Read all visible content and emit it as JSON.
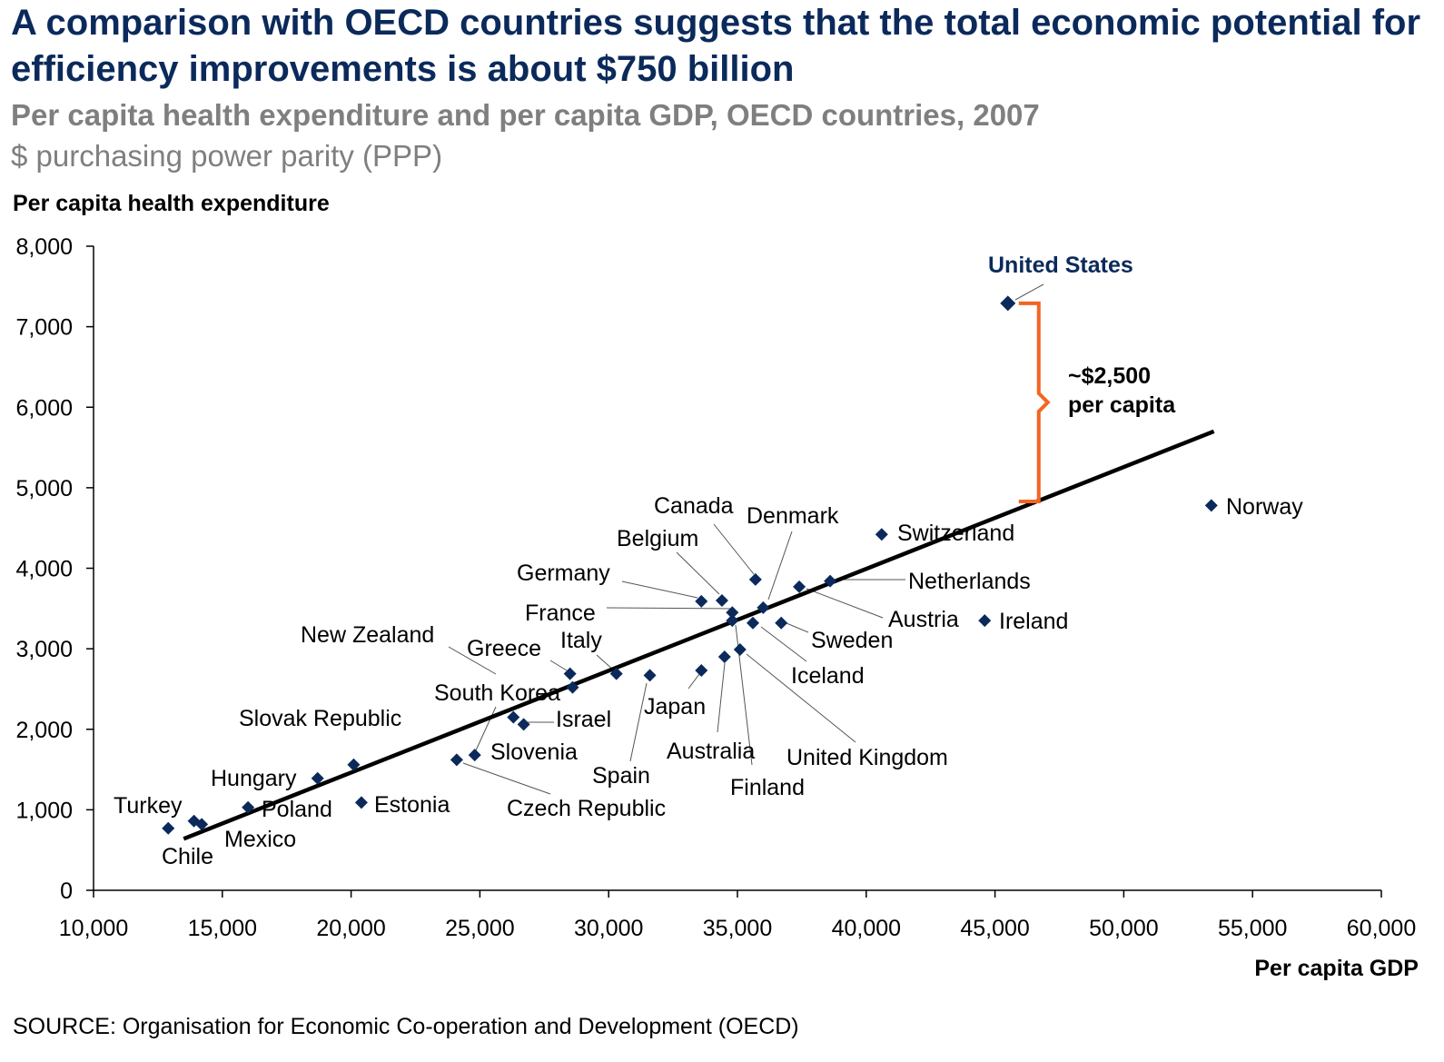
{
  "header": {
    "title": "A comparison with OECD countries suggests that the total economic potential for efficiency improvements is about $750 billion",
    "subtitle": "Per capita health expenditure and per capita GDP, OECD countries, 2007",
    "units": "$ purchasing power parity (PPP)"
  },
  "source": "SOURCE: Organisation for Economic Co-operation and Development (OECD)",
  "colors": {
    "marker": "#0b2a5b",
    "highlight_label": "#0b2a5b",
    "bracket": "#f26522",
    "trendline": "#000000",
    "title": "#0b2a5b",
    "subtitle": "#7f7f7f"
  },
  "chart_data": {
    "type": "scatter",
    "xlabel": "Per capita GDP",
    "ylabel": "Per capita health expenditure",
    "xlim": [
      10000,
      60000
    ],
    "ylim": [
      0,
      8000
    ],
    "x_ticks": [
      "10,000",
      "15,000",
      "20,000",
      "25,000",
      "30,000",
      "35,000",
      "40,000",
      "45,000",
      "50,000",
      "55,000",
      "60,000"
    ],
    "y_ticks": [
      "0",
      "1,000",
      "2,000",
      "3,000",
      "4,000",
      "5,000",
      "6,000",
      "7,000",
      "8,000"
    ],
    "grid": false,
    "points": [
      {
        "name": "United States",
        "x": 45500,
        "y": 7290,
        "highlight": true
      },
      {
        "name": "Norway",
        "x": 53400,
        "y": 4780
      },
      {
        "name": "Switzerland",
        "x": 40600,
        "y": 4420
      },
      {
        "name": "Netherlands",
        "x": 38600,
        "y": 3840
      },
      {
        "name": "Austria",
        "x": 37400,
        "y": 3770
      },
      {
        "name": "Ireland",
        "x": 44600,
        "y": 3350
      },
      {
        "name": "Sweden",
        "x": 36700,
        "y": 3320
      },
      {
        "name": "Iceland",
        "x": 35600,
        "y": 3320
      },
      {
        "name": "Denmark",
        "x": 36000,
        "y": 3510
      },
      {
        "name": "Canada",
        "x": 35700,
        "y": 3860
      },
      {
        "name": "Belgium",
        "x": 34400,
        "y": 3600
      },
      {
        "name": "Germany",
        "x": 33600,
        "y": 3590
      },
      {
        "name": "France",
        "x": 34800,
        "y": 3450
      },
      {
        "name": "Finland",
        "x": 34800,
        "y": 3350
      },
      {
        "name": "United Kingdom",
        "x": 35100,
        "y": 2990
      },
      {
        "name": "Australia",
        "x": 34500,
        "y": 2900
      },
      {
        "name": "Japan",
        "x": 33600,
        "y": 2730
      },
      {
        "name": "Spain",
        "x": 31600,
        "y": 2670
      },
      {
        "name": "Italy",
        "x": 30300,
        "y": 2690
      },
      {
        "name": "Greece",
        "x": 28500,
        "y": 2690
      },
      {
        "name": "New Zealand",
        "x": 28600,
        "y": 2520
      },
      {
        "name": "Israel",
        "x": 26700,
        "y": 2060
      },
      {
        "name": "South Korea",
        "x": 26300,
        "y": 2150
      },
      {
        "name": "Slovenia",
        "x": 24800,
        "y": 1680
      },
      {
        "name": "Czech Republic",
        "x": 24100,
        "y": 1620
      },
      {
        "name": "Estonia",
        "x": 20400,
        "y": 1090
      },
      {
        "name": "Slovak Republic",
        "x": 20100,
        "y": 1560
      },
      {
        "name": "Hungary",
        "x": 18700,
        "y": 1390
      },
      {
        "name": "Poland",
        "x": 16000,
        "y": 1030
      },
      {
        "name": "Mexico",
        "x": 14200,
        "y": 820
      },
      {
        "name": "Chile",
        "x": 13900,
        "y": 860
      },
      {
        "name": "Turkey",
        "x": 12900,
        "y": 770
      }
    ],
    "trendline": {
      "start": {
        "x": 13500,
        "y": 640
      },
      "end": {
        "x": 53500,
        "y": 5700
      }
    },
    "gap_annotation": {
      "label_line1": "~$2,500",
      "label_line2": "per capita",
      "x": 45500,
      "y_top": 7290,
      "y_bottom": 4830
    }
  }
}
